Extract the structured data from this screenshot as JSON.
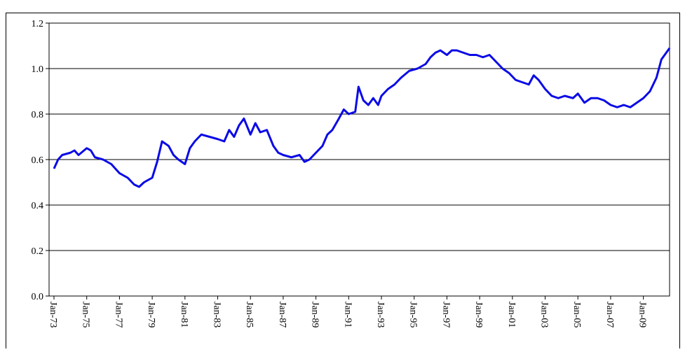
{
  "chart_data": {
    "type": "line",
    "x": [
      1973.0,
      1973.25,
      1973.5,
      1974.0,
      1974.25,
      1974.5,
      1975.0,
      1975.25,
      1975.5,
      1976.0,
      1976.5,
      1977.0,
      1977.5,
      1977.9,
      1978.2,
      1978.5,
      1979.0,
      1979.3,
      1979.6,
      1980.0,
      1980.3,
      1980.6,
      1981.0,
      1981.3,
      1981.6,
      1982.0,
      1982.5,
      1983.0,
      1983.4,
      1983.7,
      1984.0,
      1984.3,
      1984.6,
      1985.0,
      1985.3,
      1985.6,
      1986.0,
      1986.4,
      1986.7,
      1987.0,
      1987.5,
      1988.0,
      1988.3,
      1988.6,
      1989.0,
      1989.4,
      1989.7,
      1990.0,
      1990.4,
      1990.7,
      1991.0,
      1991.4,
      1991.6,
      1991.9,
      1992.2,
      1992.5,
      1992.8,
      1993.0,
      1993.4,
      1993.8,
      1994.2,
      1994.7,
      1995.2,
      1995.7,
      1996.0,
      1996.3,
      1996.6,
      1997.0,
      1997.3,
      1997.6,
      1998.0,
      1998.4,
      1998.8,
      1999.2,
      1999.6,
      2000.0,
      2000.4,
      2000.8,
      2001.2,
      2001.6,
      2002.0,
      2002.3,
      2002.6,
      2003.0,
      2003.4,
      2003.8,
      2004.2,
      2004.7,
      2005.0,
      2005.4,
      2005.8,
      2006.2,
      2006.6,
      2007.0,
      2007.4,
      2007.8,
      2008.2,
      2008.6,
      2009.0,
      2009.4,
      2009.8,
      2010.1,
      2010.4,
      2010.6
    ],
    "series": [
      {
        "color": "#0a0ae6",
        "values": [
          0.56,
          0.6,
          0.62,
          0.63,
          0.64,
          0.62,
          0.65,
          0.64,
          0.61,
          0.6,
          0.58,
          0.54,
          0.52,
          0.49,
          0.48,
          0.5,
          0.52,
          0.59,
          0.68,
          0.66,
          0.62,
          0.6,
          0.58,
          0.65,
          0.68,
          0.71,
          0.7,
          0.69,
          0.68,
          0.73,
          0.7,
          0.75,
          0.78,
          0.71,
          0.76,
          0.72,
          0.73,
          0.66,
          0.63,
          0.62,
          0.61,
          0.62,
          0.59,
          0.6,
          0.63,
          0.66,
          0.71,
          0.73,
          0.78,
          0.82,
          0.8,
          0.81,
          0.92,
          0.86,
          0.84,
          0.87,
          0.84,
          0.88,
          0.91,
          0.93,
          0.96,
          0.99,
          1.0,
          1.02,
          1.05,
          1.07,
          1.08,
          1.06,
          1.08,
          1.08,
          1.07,
          1.06,
          1.06,
          1.05,
          1.06,
          1.03,
          1.0,
          0.98,
          0.95,
          0.94,
          0.93,
          0.97,
          0.95,
          0.91,
          0.88,
          0.87,
          0.88,
          0.87,
          0.89,
          0.85,
          0.87,
          0.87,
          0.86,
          0.84,
          0.83,
          0.84,
          0.83,
          0.85,
          0.87,
          0.9,
          0.96,
          1.04,
          1.07,
          1.09
        ]
      }
    ],
    "xlim": [
      1972.7,
      2010.6
    ],
    "xticks": [
      {
        "value": 1973,
        "label": "Jan-73"
      },
      {
        "value": 1975,
        "label": "Jan-75"
      },
      {
        "value": 1977,
        "label": "Jan-77"
      },
      {
        "value": 1979,
        "label": "Jan-79"
      },
      {
        "value": 1981,
        "label": "Jan-81"
      },
      {
        "value": 1983,
        "label": "Jan-83"
      },
      {
        "value": 1985,
        "label": "Jan-85"
      },
      {
        "value": 1987,
        "label": "Jan-87"
      },
      {
        "value": 1989,
        "label": "Jan-89"
      },
      {
        "value": 1991,
        "label": "Jan-91"
      },
      {
        "value": 1993,
        "label": "Jan-93"
      },
      {
        "value": 1995,
        "label": "Jan-95"
      },
      {
        "value": 1997,
        "label": "Jan-97"
      },
      {
        "value": 1999,
        "label": "Jan-99"
      },
      {
        "value": 2001,
        "label": "Jan-01"
      },
      {
        "value": 2003,
        "label": "Jan-03"
      },
      {
        "value": 2005,
        "label": "Jan-05"
      },
      {
        "value": 2007,
        "label": "Jan-07"
      },
      {
        "value": 2009,
        "label": "Jan-09"
      }
    ],
    "ylim": [
      0,
      1.2
    ],
    "yticks": [
      {
        "value": 0,
        "label": "0.0"
      },
      {
        "value": 0.2,
        "label": "0.2"
      },
      {
        "value": 0.4,
        "label": "0.4"
      },
      {
        "value": 0.6,
        "label": "0.6"
      },
      {
        "value": 0.8,
        "label": "0.8"
      },
      {
        "value": 1.0,
        "label": "1.0"
      },
      {
        "value": 1.2,
        "label": "1.2"
      }
    ],
    "grid": true
  }
}
